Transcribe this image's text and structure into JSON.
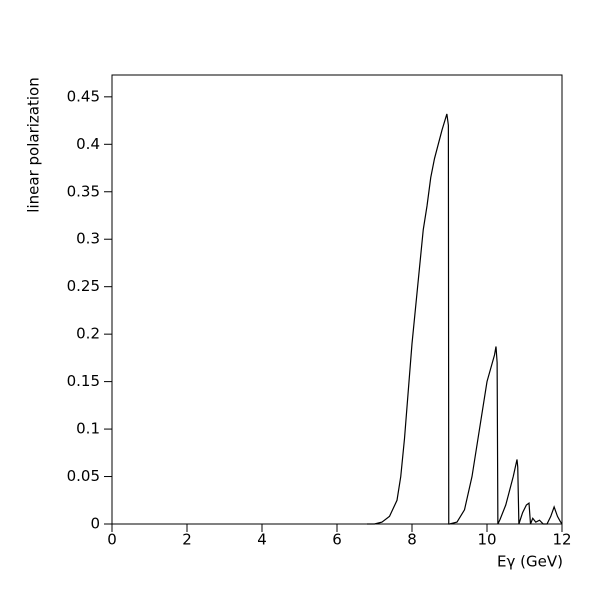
{
  "chart_data": {
    "type": "line",
    "x_label": "Eγ (GeV)",
    "y_label": "linear polarization",
    "series": [
      {
        "name": "linear polarization",
        "color": "#000000",
        "x": [
          6.8,
          7.0,
          7.2,
          7.4,
          7.6,
          7.7,
          7.8,
          7.9,
          8.0,
          8.1,
          8.2,
          8.3,
          8.4,
          8.5,
          8.6,
          8.7,
          8.8,
          8.93,
          8.97,
          8.98,
          9.0,
          9.2,
          9.4,
          9.6,
          9.8,
          10.0,
          10.2,
          10.24,
          10.27,
          10.29,
          10.35,
          10.5,
          10.7,
          10.8,
          10.82,
          10.85,
          10.95,
          11.05,
          11.12,
          11.16,
          11.22,
          11.3,
          11.4,
          11.5,
          11.6,
          11.7,
          11.79,
          11.88,
          11.95,
          12.0
        ],
        "values": [
          0,
          0,
          0.002,
          0.008,
          0.025,
          0.05,
          0.09,
          0.14,
          0.19,
          0.23,
          0.27,
          0.31,
          0.335,
          0.365,
          0.385,
          0.4,
          0.415,
          0.432,
          0.42,
          0,
          0,
          0.002,
          0.015,
          0.05,
          0.1,
          0.15,
          0.178,
          0.187,
          0.17,
          0,
          0.005,
          0.02,
          0.05,
          0.068,
          0.06,
          0,
          0.012,
          0.02,
          0.022,
          0,
          0.006,
          0.002,
          0.004,
          0,
          0,
          0.008,
          0.018,
          0.008,
          0.003,
          0
        ]
      }
    ],
    "xlim": [
      0,
      12
    ],
    "xticks": [
      0,
      2,
      4,
      6,
      8,
      10,
      12
    ],
    "ylim": [
      0,
      0.473
    ],
    "yticks": [
      0,
      0.05,
      0.1,
      0.15,
      0.2,
      0.25,
      0.3,
      0.35,
      0.4,
      0.45
    ]
  }
}
